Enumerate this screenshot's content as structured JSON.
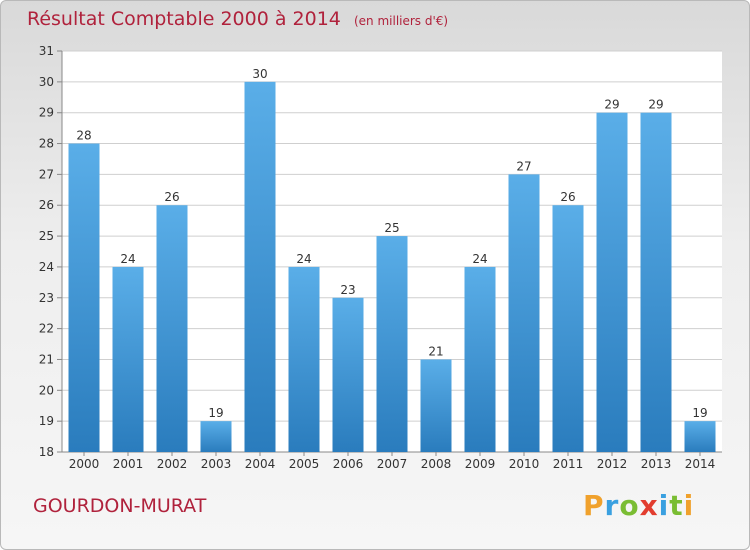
{
  "title": {
    "main": "Résultat Comptable 2000 à 2014",
    "sub": "(en milliers d'€)"
  },
  "place": "GOURDON-MURAT",
  "brand": {
    "letters": [
      "P",
      "r",
      "o",
      "x",
      "i",
      "t",
      "i"
    ],
    "colors": [
      "#f0a12c",
      "#3aa0e0",
      "#7abd33",
      "#e23d2f",
      "#3aa0e0",
      "#7abd33",
      "#f0a12c"
    ]
  },
  "colors": {
    "bar_light": "#5aaee8",
    "bar_dark": "#2a7cbd",
    "title": "#b0223c"
  },
  "chart_data": {
    "type": "bar",
    "title": "Résultat Comptable 2000 à 2014",
    "subtitle": "(en milliers d'€)",
    "categories": [
      "2000",
      "2001",
      "2002",
      "2003",
      "2004",
      "2005",
      "2006",
      "2007",
      "2008",
      "2009",
      "2010",
      "2011",
      "2012",
      "2013",
      "2014"
    ],
    "values": [
      28,
      24,
      26,
      19,
      30,
      24,
      23,
      25,
      21,
      24,
      27,
      26,
      29,
      29,
      19
    ],
    "ylim": [
      18,
      31
    ],
    "yticks": [
      18,
      19,
      20,
      21,
      22,
      23,
      24,
      25,
      26,
      27,
      28,
      29,
      30,
      31
    ],
    "grid": true
  }
}
